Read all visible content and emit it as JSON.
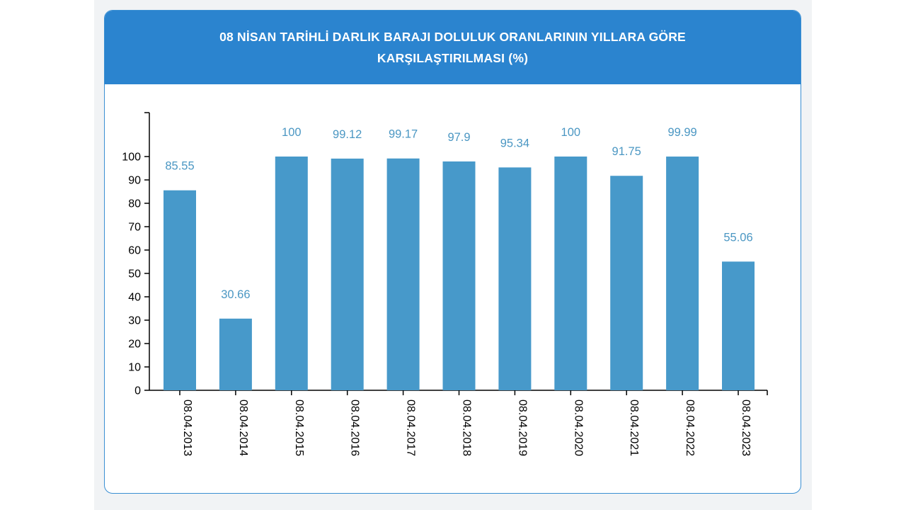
{
  "chart_data": {
    "type": "bar",
    "title": "08 NİSAN TARİHLİ DARLIK BARAJI DOLULUK ORANLARININ YILLARA GÖRE KARŞILAŞTIRILMASI (%)",
    "categories": [
      "08.04.2013",
      "08.04.2014",
      "08.04.2015",
      "08.04.2016",
      "08.04.2017",
      "08.04.2018",
      "08.04.2019",
      "08.04.2020",
      "08.04.2021",
      "08.04.2022",
      "08.04.2023"
    ],
    "values": [
      85.55,
      30.66,
      100,
      99.12,
      99.17,
      97.9,
      95.34,
      100,
      91.75,
      99.99,
      55.06
    ],
    "data_labels": [
      "85.55",
      "30.66",
      "100",
      "99.12",
      "99.17",
      "97.9",
      "95.34",
      "100",
      "91.75",
      "99.99",
      "55.06"
    ],
    "y_ticks": [
      0,
      10,
      20,
      30,
      40,
      50,
      60,
      70,
      80,
      90,
      100
    ],
    "ylim": [
      0,
      118
    ],
    "xlabel": "",
    "ylabel": "",
    "grid": false,
    "legend": "none",
    "colors": {
      "bar": "#4799ca",
      "header": "#2b84cf",
      "label": "#4b97c3",
      "border": "#3a8fd3"
    }
  }
}
